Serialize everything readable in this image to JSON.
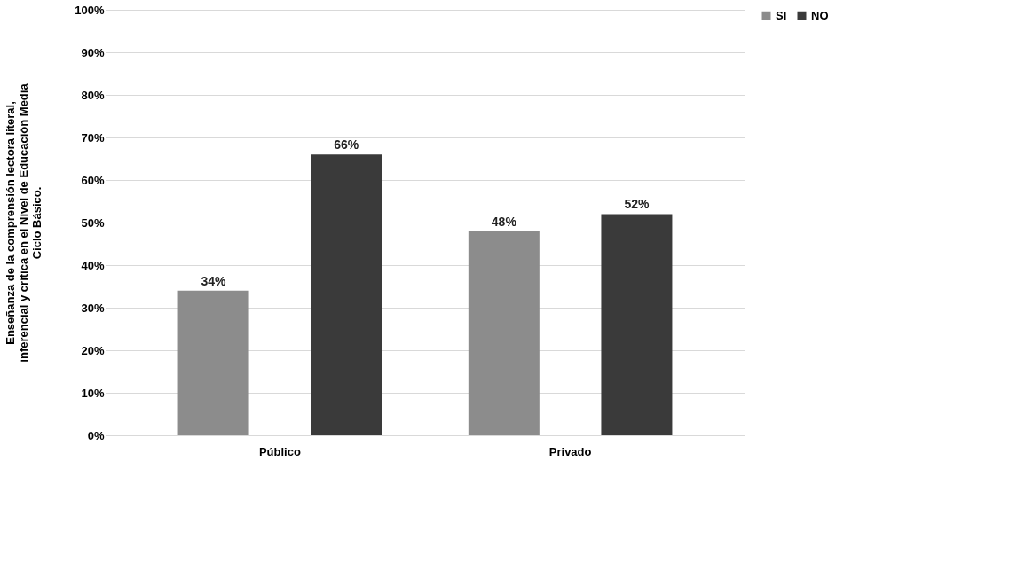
{
  "chart_data": {
    "type": "bar",
    "ylabel": "Enseñanza de la comprensión lectora literal, inferencial y crítica en el Nivel de Educación Media Ciclo Básico.",
    "categories": [
      "Público",
      "Privado"
    ],
    "series": [
      {
        "name": "SI",
        "color": "#8c8c8c",
        "values": [
          34,
          48
        ],
        "value_labels": [
          "34%",
          "48%"
        ]
      },
      {
        "name": "NO",
        "color": "#3a3a3a",
        "values": [
          66,
          52
        ],
        "value_labels": [
          "66%",
          "52%"
        ]
      }
    ],
    "ylim": [
      0,
      100
    ],
    "yticks": [
      {
        "value": 0,
        "label": "0%"
      },
      {
        "value": 10,
        "label": "10%"
      },
      {
        "value": 20,
        "label": "20%"
      },
      {
        "value": 30,
        "label": "30%"
      },
      {
        "value": 40,
        "label": "40%"
      },
      {
        "value": 50,
        "label": "50%"
      },
      {
        "value": 60,
        "label": "60%"
      },
      {
        "value": 70,
        "label": "70%"
      },
      {
        "value": 80,
        "label": "80%"
      },
      {
        "value": 90,
        "label": "90%"
      },
      {
        "value": 100,
        "label": "100%"
      }
    ],
    "grid": "y",
    "legend": "right"
  }
}
